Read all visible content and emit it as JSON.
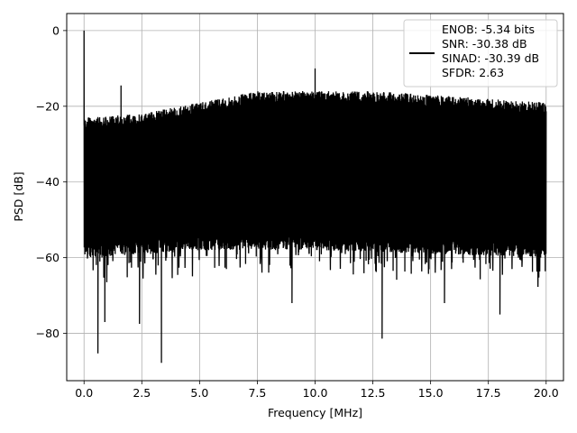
{
  "chart_data": {
    "type": "line",
    "xlabel": "Frequency [MHz]",
    "ylabel": "PSD [dB]",
    "xlim": [
      -0.75,
      20.75
    ],
    "ylim": [
      -92.5,
      4.5
    ],
    "x_ticks": [
      0.0,
      2.5,
      5.0,
      7.5,
      10.0,
      12.5,
      15.0,
      17.5,
      20.0
    ],
    "x_tick_labels": [
      "0.0",
      "2.5",
      "5.0",
      "7.5",
      "10.0",
      "12.5",
      "15.0",
      "17.5",
      "20.0"
    ],
    "y_ticks": [
      0,
      -20,
      -40,
      -60,
      -80
    ],
    "y_tick_labels": [
      "0",
      "−20",
      "−40",
      "−60",
      "−80"
    ],
    "grid": true,
    "legend": {
      "placement": "top-right",
      "entries": [
        "ENOB: -5.34 bits",
        "SNR: -30.38 dB",
        "SINAD: -30.39 dB",
        "SFDR: 2.63"
      ]
    },
    "series": [
      {
        "color": "#000000",
        "x_start": 0.0,
        "x_end": 20.0,
        "dense_noise": true,
        "upper_envelope": [
          [
            0.0,
            -23
          ],
          [
            2.5,
            -22
          ],
          [
            5.0,
            -19
          ],
          [
            7.5,
            -16
          ],
          [
            10.0,
            -16
          ],
          [
            12.5,
            -16
          ],
          [
            15.0,
            -17
          ],
          [
            17.5,
            -18
          ],
          [
            20.0,
            -19
          ]
        ],
        "lower_typical": [
          [
            0.0,
            -60
          ],
          [
            5.0,
            -58
          ],
          [
            10.0,
            -58
          ],
          [
            15.0,
            -59
          ],
          [
            20.0,
            -60
          ]
        ],
        "peaks": [
          [
            0.0,
            0
          ],
          [
            1.6,
            -14.5
          ],
          [
            10.0,
            -10
          ]
        ],
        "dips": [
          [
            0.6,
            -85.3
          ],
          [
            3.35,
            -87.8
          ],
          [
            12.9,
            -81.4
          ],
          [
            0.9,
            -77
          ],
          [
            2.4,
            -77.5
          ],
          [
            9.0,
            -72
          ],
          [
            15.6,
            -72
          ],
          [
            18.0,
            -75
          ]
        ]
      }
    ]
  }
}
